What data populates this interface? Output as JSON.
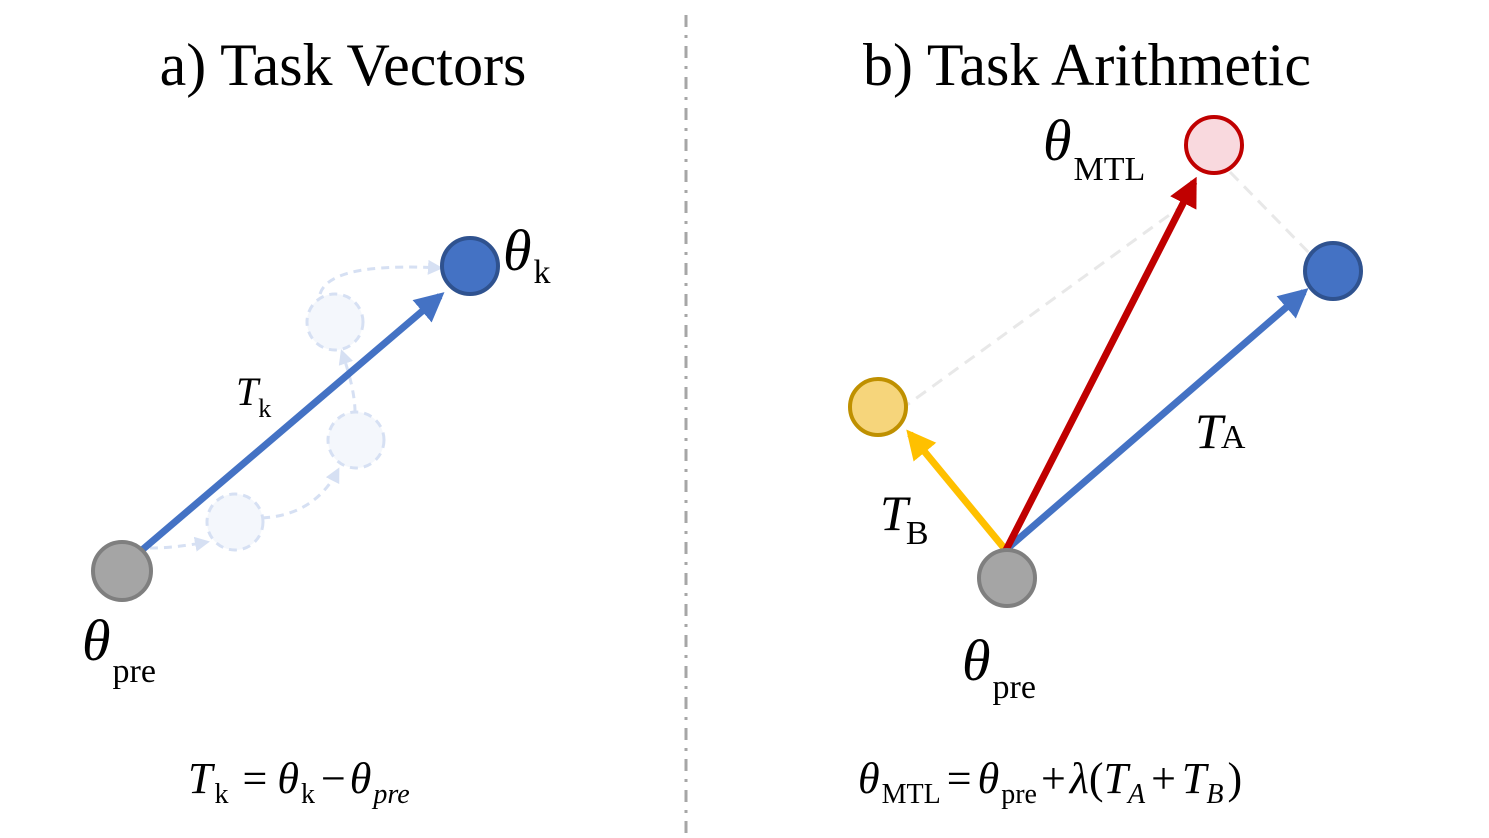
{
  "panel_a": {
    "title": "a) Task Vectors",
    "theta_pre": {
      "symbol": "θ",
      "sub": "pre"
    },
    "theta_k": {
      "symbol": "θ",
      "sub": "k"
    },
    "vector_label": {
      "symbol": "T",
      "sub": "k"
    },
    "equation": {
      "lhs": "T",
      "lhs_sub": "k",
      "eq": "=",
      "t1": "θ",
      "t1_sub": "k",
      "minus": "−",
      "t2": "θ",
      "t2_sub": "pre"
    }
  },
  "panel_b": {
    "title": "b) Task Arithmetic",
    "theta_mtl": {
      "symbol": "θ",
      "sub": "MTL"
    },
    "theta_pre": {
      "symbol": "θ",
      "sub": "pre"
    },
    "vector_a": {
      "symbol": "T",
      "sub": "A"
    },
    "vector_b": {
      "symbol": "T",
      "sub": "B"
    },
    "equation": {
      "lhs": "θ",
      "lhs_sub": "MTL",
      "eq": "=",
      "t1": "θ",
      "t1_sub": "pre",
      "plus": "+",
      "lambda": "λ",
      "lparen": "(",
      "ta": "T",
      "ta_sub": "A",
      "plus2": "+",
      "tb": "T",
      "tb_sub": "B",
      "rparen": ")"
    }
  },
  "colors": {
    "blue": "#4472C4",
    "blue_dark": "#2F528F",
    "gray": "#A5A5A5",
    "gray_dark": "#7F7F7F",
    "red": "#C00000",
    "red_fill": "#F9D9DE",
    "yellow": "#FFC000",
    "yellow_fill": "#F6D57B",
    "yellow_dark": "#BF9000",
    "divider": "#A6A6A6",
    "ghost": "#D6E0F3"
  }
}
